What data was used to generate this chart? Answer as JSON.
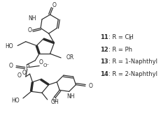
{
  "background_color": "#ffffff",
  "legend_entries": [
    {
      "number": "11",
      "text": ": R = CH",
      "subscript": "3"
    },
    {
      "number": "12",
      "text": ": R = Ph",
      "subscript": ""
    },
    {
      "number": "13",
      "text": ": R = 1-Naphthyl",
      "subscript": ""
    },
    {
      "number": "14",
      "text": ": R = 2-Naphthyl",
      "subscript": ""
    }
  ],
  "figsize": [
    2.4,
    1.78
  ],
  "dpi": 100,
  "line_color": "#2a2a2a",
  "line_width": 0.85,
  "font_size": 6.0,
  "bold_font_size": 6.0
}
